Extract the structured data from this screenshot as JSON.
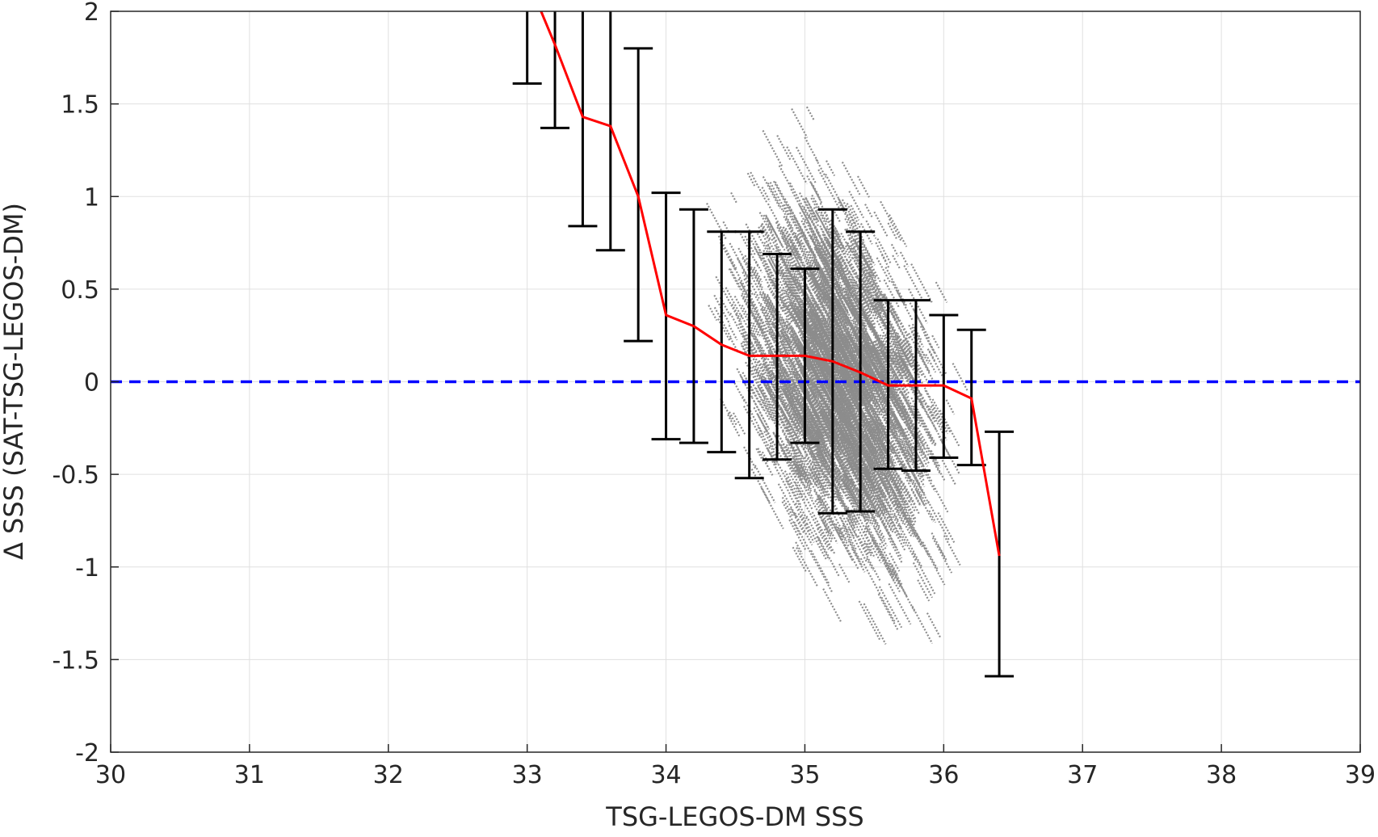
{
  "chart_data": {
    "type": "scatter",
    "title": "",
    "xlabel": "TSG-LEGOS-DM SSS",
    "ylabel": "Δ SSS (SAT-TSG-LEGOS-DM)",
    "xlim": [
      30,
      39
    ],
    "ylim": [
      -2,
      2
    ],
    "xticks": [
      30,
      31,
      32,
      33,
      34,
      35,
      36,
      37,
      38,
      39
    ],
    "xtick_labels": [
      "30",
      "31",
      "32",
      "33",
      "34",
      "35",
      "36",
      "37",
      "38",
      "39"
    ],
    "yticks": [
      -2,
      -1.5,
      -1,
      -0.5,
      0,
      0.5,
      1,
      1.5,
      2
    ],
    "ytick_labels": [
      "-2",
      "-1.5",
      "-1",
      "-0.5",
      "0",
      "0.5",
      "1",
      "1.5",
      "2"
    ],
    "grid": true,
    "colors": {
      "scatter": "#8c8c8c",
      "mean_line": "#ff0000",
      "error_bars": "#000000",
      "zero_line": "#0000ff",
      "grid": "#e0e0e0",
      "axes": "#262626"
    },
    "scatter_cloud": {
      "description_of_density": "dense cloud of points between SSS 33.8 and 36.3, centered near (35.2, 0.1)",
      "x_center": 35.2,
      "y_center": 0.1,
      "x_spread": 0.55,
      "y_spread": 0.55,
      "slope": -0.9
    },
    "mean_curve": {
      "x": [
        33.1,
        33.2,
        33.4,
        33.6,
        33.8,
        34.0,
        34.2,
        34.4,
        34.6,
        34.8,
        35.0,
        35.2,
        35.4,
        35.6,
        35.8,
        36.0,
        36.2,
        36.4
      ],
      "y": [
        2.0,
        1.82,
        1.43,
        1.38,
        1.0,
        0.36,
        0.3,
        0.2,
        0.14,
        0.14,
        0.14,
        0.11,
        0.05,
        -0.02,
        -0.02,
        -0.02,
        -0.09,
        -0.94
      ]
    },
    "error_bars": [
      {
        "x": 33.0,
        "low": 1.61,
        "high": 2.0
      },
      {
        "x": 33.2,
        "low": 1.37,
        "high": 2.0
      },
      {
        "x": 33.4,
        "low": 0.84,
        "high": 2.0
      },
      {
        "x": 33.6,
        "low": 0.71,
        "high": 2.0
      },
      {
        "x": 33.8,
        "low": 0.22,
        "high": 1.8
      },
      {
        "x": 34.0,
        "low": -0.31,
        "high": 1.02
      },
      {
        "x": 34.2,
        "low": -0.33,
        "high": 0.93
      },
      {
        "x": 34.4,
        "low": -0.38,
        "high": 0.81
      },
      {
        "x": 34.6,
        "low": -0.52,
        "high": 0.81
      },
      {
        "x": 34.8,
        "low": -0.42,
        "high": 0.69
      },
      {
        "x": 35.0,
        "low": -0.33,
        "high": 0.61
      },
      {
        "x": 35.2,
        "low": -0.71,
        "high": 0.93
      },
      {
        "x": 35.4,
        "low": -0.7,
        "high": 0.81
      },
      {
        "x": 35.6,
        "low": -0.47,
        "high": 0.44
      },
      {
        "x": 35.8,
        "low": -0.48,
        "high": 0.44
      },
      {
        "x": 36.0,
        "low": -0.41,
        "high": 0.36
      },
      {
        "x": 36.2,
        "low": -0.45,
        "high": 0.28
      },
      {
        "x": 36.4,
        "low": -1.59,
        "high": -0.27
      }
    ],
    "reference_line": {
      "y": 0,
      "style": "dashed"
    }
  }
}
